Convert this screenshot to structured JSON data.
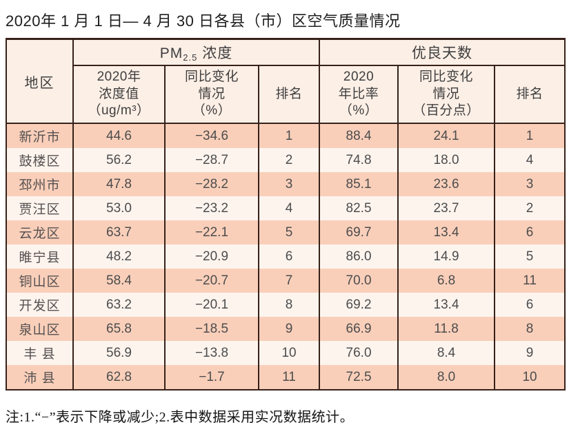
{
  "title": "2020年 1 月 1 日— 4 月 30 日各县（市）区空气质量情况",
  "table": {
    "region_header": "地区",
    "pm_group": {
      "pre": "PM",
      "sub": "2.5",
      "post": " 浓度"
    },
    "good_group": {
      "label": "优良天数"
    },
    "sub_headers": [
      "2020年\n浓度值\n（ug/m³）",
      "同比变化\n情况\n（%）",
      "排名",
      "2020\n年比率\n（%）",
      "同比变化\n情况\n（百分点）",
      "排名"
    ],
    "rows": [
      {
        "region": "新沂市",
        "pm_value": "44.6",
        "pm_change": "−34.6",
        "pm_rank": "1",
        "good_ratio": "88.4",
        "good_change": "24.1",
        "good_rank": "1"
      },
      {
        "region": "鼓楼区",
        "pm_value": "56.2",
        "pm_change": "−28.7",
        "pm_rank": "2",
        "good_ratio": "74.8",
        "good_change": "18.0",
        "good_rank": "4"
      },
      {
        "region": "邳州市",
        "pm_value": "47.8",
        "pm_change": "−28.2",
        "pm_rank": "3",
        "good_ratio": "85.1",
        "good_change": "23.6",
        "good_rank": "3"
      },
      {
        "region": "贾汪区",
        "pm_value": "53.0",
        "pm_change": "−23.2",
        "pm_rank": "4",
        "good_ratio": "82.5",
        "good_change": "23.7",
        "good_rank": "2"
      },
      {
        "region": "云龙区",
        "pm_value": "63.7",
        "pm_change": "−22.1",
        "pm_rank": "5",
        "good_ratio": "69.7",
        "good_change": "13.4",
        "good_rank": "6"
      },
      {
        "region": "睢宁县",
        "pm_value": "48.2",
        "pm_change": "−20.9",
        "pm_rank": "6",
        "good_ratio": "86.0",
        "good_change": "14.9",
        "good_rank": "5"
      },
      {
        "region": "铜山区",
        "pm_value": "58.4",
        "pm_change": "−20.7",
        "pm_rank": "7",
        "good_ratio": "70.0",
        "good_change": "6.8",
        "good_rank": "11"
      },
      {
        "region": "开发区",
        "pm_value": "63.2",
        "pm_change": "−20.1",
        "pm_rank": "8",
        "good_ratio": "69.2",
        "good_change": "13.4",
        "good_rank": "6"
      },
      {
        "region": "泉山区",
        "pm_value": "65.8",
        "pm_change": "−18.5",
        "pm_rank": "9",
        "good_ratio": "66.9",
        "good_change": "11.8",
        "good_rank": "8"
      },
      {
        "region": "丰 县",
        "pm_value": "56.9",
        "pm_change": "−13.8",
        "pm_rank": "10",
        "good_ratio": "76.0",
        "good_change": "8.4",
        "good_rank": "9"
      },
      {
        "region": "沛 县",
        "pm_value": "62.8",
        "pm_change": "−1.7",
        "pm_rank": "11",
        "good_ratio": "72.5",
        "good_change": "8.0",
        "good_rank": "10"
      }
    ]
  },
  "note": "注:1.“−”表示下降或减少;2.表中数据采用实况数据统计。",
  "colors": {
    "row_odd": "#f9cfba",
    "row_even": "#fdf4ee",
    "header_bg": "#fcefe6",
    "border": "#362119"
  }
}
